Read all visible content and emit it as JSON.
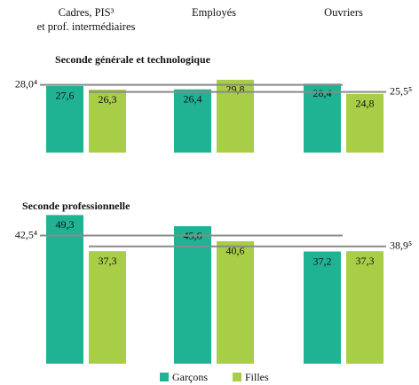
{
  "chart_data": {
    "type": "bar",
    "categories": [
      "Cadres, PIS³\net prof. intermédiaires",
      "Employés",
      "Ouvriers"
    ],
    "series": [
      {
        "name": "Garçons",
        "color": "#1fb393"
      },
      {
        "name": "Filles",
        "color": "#a8cd46"
      }
    ],
    "panels": [
      {
        "title": "Seconde générale et technologique",
        "ylim": [
          4,
          30.4
        ],
        "values": [
          [
            27.6,
            26.4,
            28.4
          ],
          [
            26.3,
            29.8,
            24.8
          ]
        ],
        "value_labels": [
          [
            "27,6",
            "26,4",
            "28,4"
          ],
          [
            "26,3",
            "29,8",
            "24,8"
          ]
        ],
        "reference_lines": [
          {
            "value": 28.0,
            "label": "28,0⁴"
          },
          {
            "value": 25.5,
            "label": "25,5⁵"
          }
        ]
      },
      {
        "title": "Seconde professionnelle",
        "ylim": [
          0,
          50
        ],
        "values": [
          [
            49.3,
            45.6,
            37.2
          ],
          [
            37.3,
            40.6,
            37.3
          ]
        ],
        "value_labels": [
          [
            "49,3",
            "45,6",
            "37,2"
          ],
          [
            "37,3",
            "40,6",
            "37,3"
          ]
        ],
        "reference_lines": [
          {
            "value": 42.5,
            "label": "42,5⁴"
          },
          {
            "value": 38.9,
            "label": "38,9⁵"
          }
        ]
      }
    ]
  }
}
